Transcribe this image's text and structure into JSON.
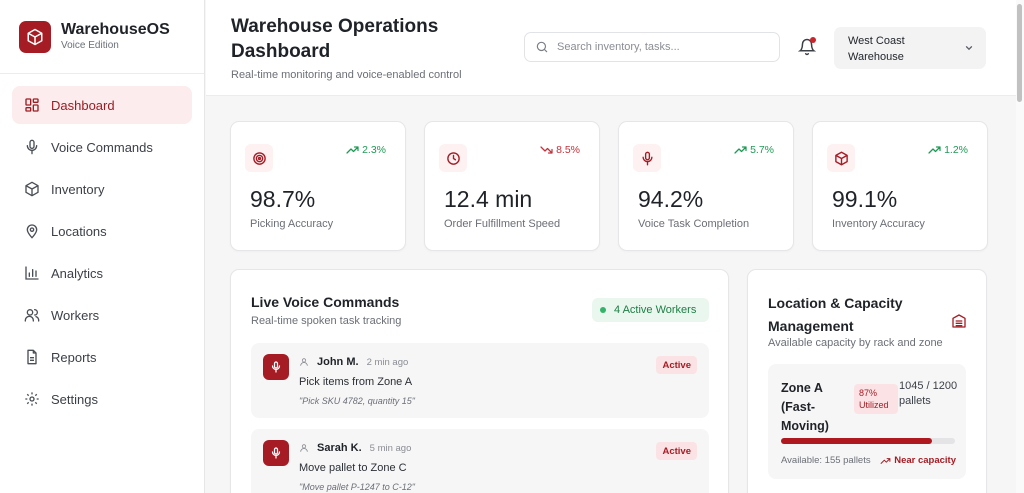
{
  "brand": {
    "title": "WarehouseOS",
    "subtitle": "Voice Edition"
  },
  "sidebar": {
    "items": [
      {
        "label": "Dashboard",
        "icon": "dashboard-icon",
        "active": true
      },
      {
        "label": "Voice Commands",
        "icon": "mic-icon"
      },
      {
        "label": "Inventory",
        "icon": "box-icon"
      },
      {
        "label": "Locations",
        "icon": "map-pin-icon"
      },
      {
        "label": "Analytics",
        "icon": "bar-chart-icon"
      },
      {
        "label": "Workers",
        "icon": "users-icon"
      },
      {
        "label": "Reports",
        "icon": "file-icon"
      },
      {
        "label": "Settings",
        "icon": "gear-icon"
      }
    ]
  },
  "header": {
    "title": "Warehouse Operations Dashboard",
    "subtitle": "Real-time monitoring and voice-enabled control",
    "search_placeholder": "Search inventory, tasks...",
    "location": "West Coast Warehouse",
    "has_notification": true
  },
  "stats": [
    {
      "value": "98.7%",
      "label": "Picking Accuracy",
      "trend": "2.3%",
      "direction": "up",
      "icon": "target-icon"
    },
    {
      "value": "12.4 min",
      "label": "Order Fulfillment Speed",
      "trend": "8.5%",
      "direction": "down",
      "icon": "clock-icon"
    },
    {
      "value": "94.2%",
      "label": "Voice Task Completion",
      "trend": "5.7%",
      "direction": "up",
      "icon": "mic-icon"
    },
    {
      "value": "99.1%",
      "label": "Inventory Accuracy",
      "trend": "1.2%",
      "direction": "up",
      "icon": "box-icon"
    }
  ],
  "voice_commands": {
    "title": "Live Voice Commands",
    "subtitle": "Real-time spoken task tracking",
    "active_workers": "4 Active Workers",
    "items": [
      {
        "worker": "John M.",
        "time": "2 min ago",
        "task": "Pick items from Zone A",
        "quote": "\"Pick SKU 4782, quantity 15\"",
        "status": "Active"
      },
      {
        "worker": "Sarah K.",
        "time": "5 min ago",
        "task": "Move pallet to Zone C",
        "quote": "\"Move pallet P-1247 to C-12\"",
        "status": "Active"
      }
    ]
  },
  "locations": {
    "title": "Location & Capacity Management",
    "subtitle": "Available capacity by rack and zone",
    "zones": [
      {
        "name": "Zone A (Fast-Moving)",
        "utilization_pct": "87%",
        "utilization_label": "Utilized",
        "capacity": "1045 / 1200 pallets",
        "fill_fraction": 0.87,
        "available": "Available: 155 pallets",
        "warning": "Near capacity"
      }
    ]
  },
  "colors": {
    "brand": "#a51c24",
    "positive": "#1f9a55",
    "negative": "#c4313a",
    "active_nav_bg": "#fceced"
  }
}
